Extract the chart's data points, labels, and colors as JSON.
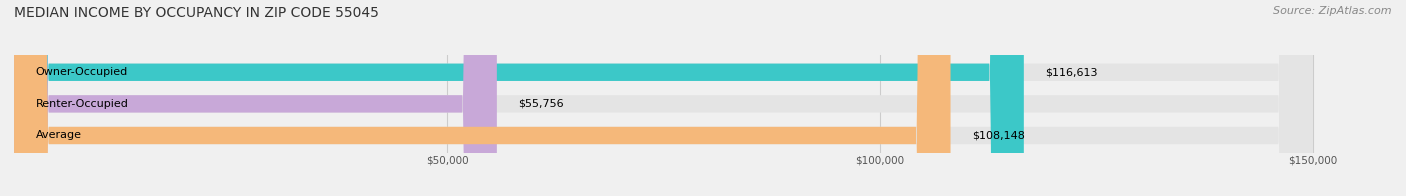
{
  "title": "MEDIAN INCOME BY OCCUPANCY IN ZIP CODE 55045",
  "source": "Source: ZipAtlas.com",
  "categories": [
    "Owner-Occupied",
    "Renter-Occupied",
    "Average"
  ],
  "values": [
    116613,
    55756,
    108148
  ],
  "labels": [
    "$116,613",
    "$55,756",
    "$108,148"
  ],
  "bar_colors": [
    "#3cc8c8",
    "#c8a8d8",
    "#f5b87a"
  ],
  "xlim_max": 150000,
  "xtick_positions": [
    50000,
    100000,
    150000
  ],
  "xtick_labels": [
    "$50,000",
    "$100,000",
    "$150,000"
  ],
  "background_color": "#f0f0f0",
  "bar_bg_color": "#e4e4e4",
  "title_fontsize": 10,
  "source_fontsize": 8,
  "label_fontsize": 8,
  "category_fontsize": 8,
  "bar_height": 0.55
}
